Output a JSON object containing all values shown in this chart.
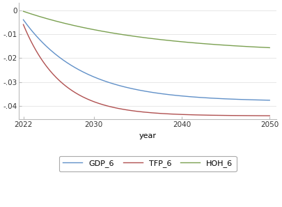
{
  "title": "",
  "xlabel": "year",
  "ylabel": "",
  "xlim": [
    2021.5,
    2050.8
  ],
  "ylim": [
    -0.0455,
    0.003
  ],
  "yticks": [
    0,
    -0.01,
    -0.02,
    -0.03,
    -0.04
  ],
  "ytick_labels": [
    "0",
    "-.01",
    "-.02",
    "-.03",
    "-.04"
  ],
  "xticks": [
    2022,
    2030,
    2040,
    2050
  ],
  "year_start": 2022,
  "year_end": 2050,
  "gdp_color": "#6090c8",
  "tfp_color": "#b05050",
  "hoh_color": "#7aa050",
  "legend_labels": [
    "GDP_6",
    "TFP_6",
    "HOH_6"
  ],
  "gdp_p0": -0.004,
  "gdp_rate": 4.2,
  "gdp_limit": -0.038,
  "tfp_p0": -0.006,
  "tfp_rate": 6.5,
  "tfp_limit": -0.044,
  "hoh_p0": -0.0005,
  "hoh_rate": 2.0,
  "hoh_limit": -0.018,
  "figsize": [
    4.06,
    2.97
  ],
  "dpi": 100
}
